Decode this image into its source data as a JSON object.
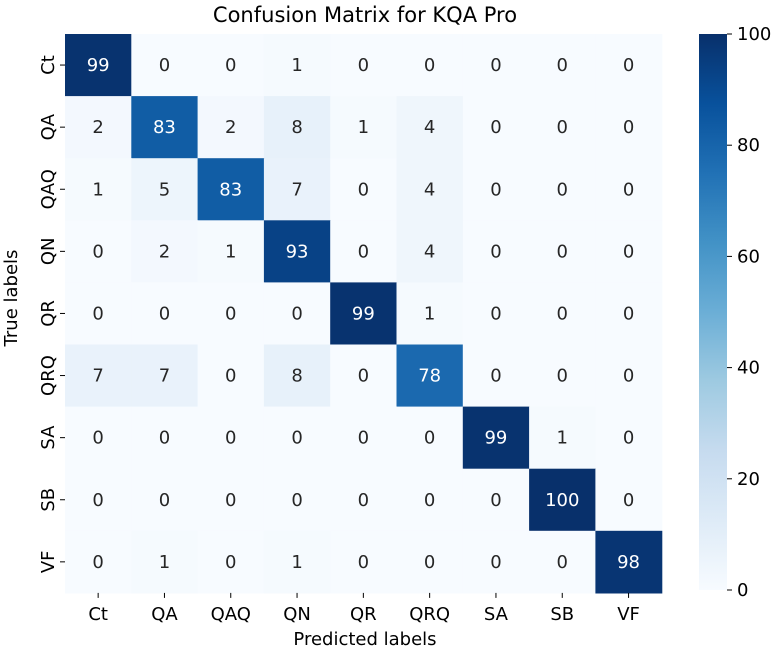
{
  "chart_data": {
    "type": "heatmap",
    "title": "Confusion Matrix for KQA Pro",
    "xlabel": "Predicted labels",
    "ylabel": "True labels",
    "x_categories": [
      "Ct",
      "QA",
      "QAQ",
      "QN",
      "QR",
      "QRQ",
      "SA",
      "SB",
      "VF"
    ],
    "y_categories": [
      "Ct",
      "QA",
      "QAQ",
      "QN",
      "QR",
      "QRQ",
      "SA",
      "SB",
      "VF"
    ],
    "values": [
      [
        99,
        0,
        0,
        1,
        0,
        0,
        0,
        0,
        0
      ],
      [
        2,
        83,
        2,
        8,
        1,
        4,
        0,
        0,
        0
      ],
      [
        1,
        5,
        83,
        7,
        0,
        4,
        0,
        0,
        0
      ],
      [
        0,
        2,
        1,
        93,
        0,
        4,
        0,
        0,
        0
      ],
      [
        0,
        0,
        0,
        0,
        99,
        1,
        0,
        0,
        0
      ],
      [
        7,
        7,
        0,
        8,
        0,
        78,
        0,
        0,
        0
      ],
      [
        0,
        0,
        0,
        0,
        0,
        0,
        99,
        1,
        0
      ],
      [
        0,
        0,
        0,
        0,
        0,
        0,
        0,
        100,
        0
      ],
      [
        0,
        1,
        0,
        1,
        0,
        0,
        0,
        0,
        98
      ]
    ],
    "colormap": "Blues",
    "vmin": 0,
    "vmax": 100,
    "colorbar_ticks": [
      0,
      20,
      40,
      60,
      80,
      100
    ],
    "grid": false,
    "colors": {
      "low": "#f7fbff",
      "high": "#08306b"
    }
  }
}
